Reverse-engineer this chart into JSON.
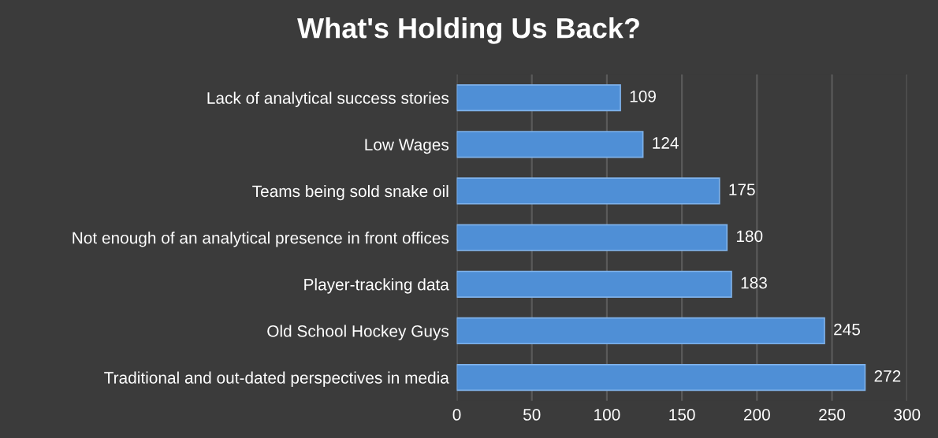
{
  "chart_data": {
    "type": "bar",
    "orientation": "horizontal",
    "title": "What's Holding Us Back?",
    "categories": [
      "Lack of analytical success stories",
      "Low Wages",
      "Teams being sold snake oil",
      "Not enough of an analytical presence in front offices",
      "Player-tracking data",
      "Old School Hockey Guys",
      "Traditional and out-dated perspectives in media"
    ],
    "values": [
      109,
      124,
      175,
      180,
      183,
      245,
      272
    ],
    "color": "#4f8fd6",
    "xlim": [
      0,
      300
    ],
    "xticks": [
      0,
      50,
      100,
      150,
      200,
      250,
      300
    ],
    "grid": "x",
    "data_labels": true,
    "legend": false
  }
}
